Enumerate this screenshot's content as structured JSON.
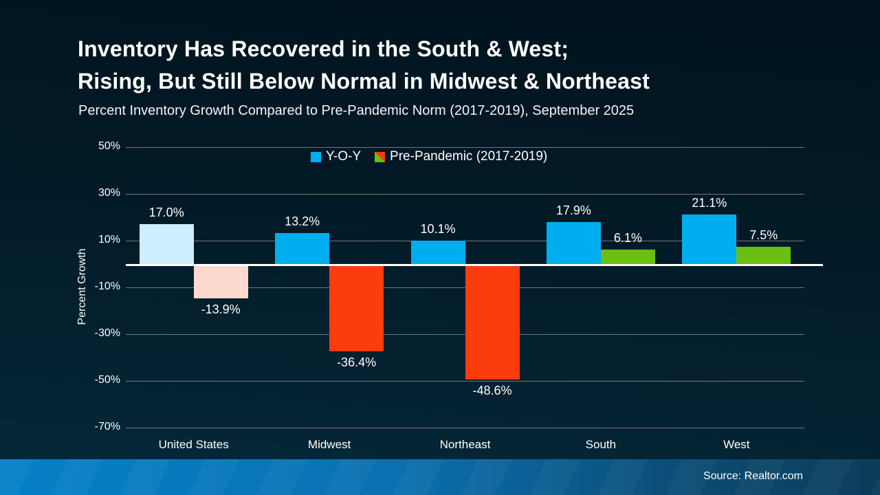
{
  "slide": {
    "title_line1": "Inventory Has Recovered in the South & West;",
    "title_line2": "Rising, But Still Below Normal in Midwest & Northeast",
    "subtitle": "Percent Inventory Growth Compared to Pre-Pandemic Norm (2017-2019), September 2025",
    "footer_source": "Source: Realtor.com"
  },
  "chart_data": {
    "type": "bar",
    "title": "Percent Inventory Growth Compared to Pre-Pandemic Norm (2017-2019), September 2025",
    "categories": [
      "United States",
      "Midwest",
      "Northeast",
      "South",
      "West"
    ],
    "series": [
      {
        "name": "Y-O-Y",
        "values": [
          17.0,
          13.2,
          10.1,
          17.9,
          21.1
        ],
        "labels": [
          "17.0%",
          "13.2%",
          "10.1%",
          "17.9%",
          "21.1%"
        ],
        "colors": [
          "#cdeefc",
          "#00aeef",
          "#00aeef",
          "#00aeef",
          "#00aeef"
        ]
      },
      {
        "name": "Pre-Pandemic (2017-2019)",
        "values": [
          -13.9,
          -36.4,
          -48.6,
          6.1,
          7.5
        ],
        "labels": [
          "-13.9%",
          "-36.4%",
          "-48.6%",
          "6.1%",
          "7.5%"
        ],
        "colors": [
          "#fcd9ce",
          "#fb3c0d",
          "#fb3c0d",
          "#6abf12",
          "#6abf12"
        ]
      }
    ],
    "xlabel": "",
    "ylabel": "Percent Growth",
    "ylim": [
      -70,
      50
    ],
    "yticks": [
      50,
      30,
      10,
      -10,
      -30,
      -50,
      -70
    ],
    "ytick_labels": [
      "50%",
      "30%",
      "10%",
      "-10%",
      "-30%",
      "-50%",
      "-70%"
    ],
    "grid": true,
    "legend_position": "top-center"
  },
  "legend": {
    "items": [
      {
        "label": "Y-O-Y",
        "swatch": "solid",
        "color": "#00aeef"
      },
      {
        "label": "Pre-Pandemic (2017-2019)",
        "swatch": "split",
        "color_a": "#6abf12",
        "color_b": "#fb3c0d"
      }
    ]
  },
  "colors": {
    "yoy_blue": "#00aeef",
    "yoy_blue_pale": "#cdeefc",
    "neg_red": "#fb3c0d",
    "neg_red_pale": "#fcd9ce",
    "pos_green": "#6abf12",
    "gridline_gray": "#75787b",
    "zero_line_white": "#ffffff",
    "footer_blue": "#0581c8"
  }
}
